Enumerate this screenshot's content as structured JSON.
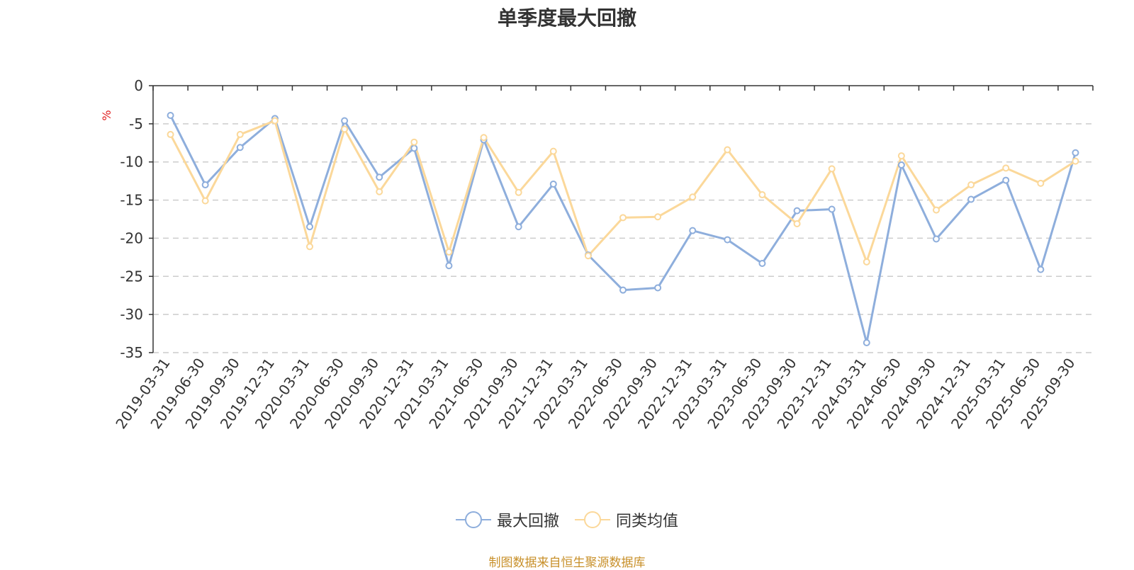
{
  "title": "单季度最大回撤",
  "source": "制图数据来自恒生聚源数据库",
  "chart_data": {
    "type": "line",
    "title": "单季度最大回撤",
    "ylabel": "%",
    "xlabel": "",
    "ylim": [
      -35,
      0
    ],
    "yticks": [
      0,
      -5,
      -10,
      -15,
      -20,
      -25,
      -30,
      -35
    ],
    "grid": true,
    "legend_position": "bottom",
    "categories": [
      "2019-03-31",
      "2019-06-30",
      "2019-09-30",
      "2019-12-31",
      "2020-03-31",
      "2020-06-30",
      "2020-09-30",
      "2020-12-31",
      "2021-03-31",
      "2021-06-30",
      "2021-09-30",
      "2021-12-31",
      "2022-03-31",
      "2022-06-30",
      "2022-09-30",
      "2022-12-31",
      "2023-03-31",
      "2023-06-30",
      "2023-09-30",
      "2023-12-31",
      "2024-03-31",
      "2024-06-30",
      "2024-09-30",
      "2024-12-31",
      "2025-03-31",
      "2025-06-30",
      "2025-09-30"
    ],
    "series": [
      {
        "name": "最大回撤",
        "color": "#8eaedc",
        "values": [
          -3.9,
          -13.0,
          -8.1,
          -4.3,
          -18.5,
          -4.6,
          -12.0,
          -8.2,
          -23.6,
          -7.1,
          -18.5,
          -12.9,
          -22.2,
          -26.8,
          -26.5,
          -19.0,
          -20.2,
          -23.3,
          -16.4,
          -16.2,
          -33.7,
          -10.4,
          -20.1,
          -14.9,
          -12.4,
          -24.1,
          -8.8
        ]
      },
      {
        "name": "同类均值",
        "color": "#fbd89a",
        "values": [
          -6.4,
          -15.1,
          -6.4,
          -4.6,
          -21.1,
          -5.7,
          -13.9,
          -7.4,
          -21.8,
          -6.8,
          -14.0,
          -8.6,
          -22.3,
          -17.3,
          -17.2,
          -14.6,
          -8.4,
          -14.3,
          -18.1,
          -10.9,
          -23.1,
          -9.2,
          -16.3,
          -13.0,
          -10.8,
          -12.8,
          -9.9
        ]
      }
    ]
  }
}
